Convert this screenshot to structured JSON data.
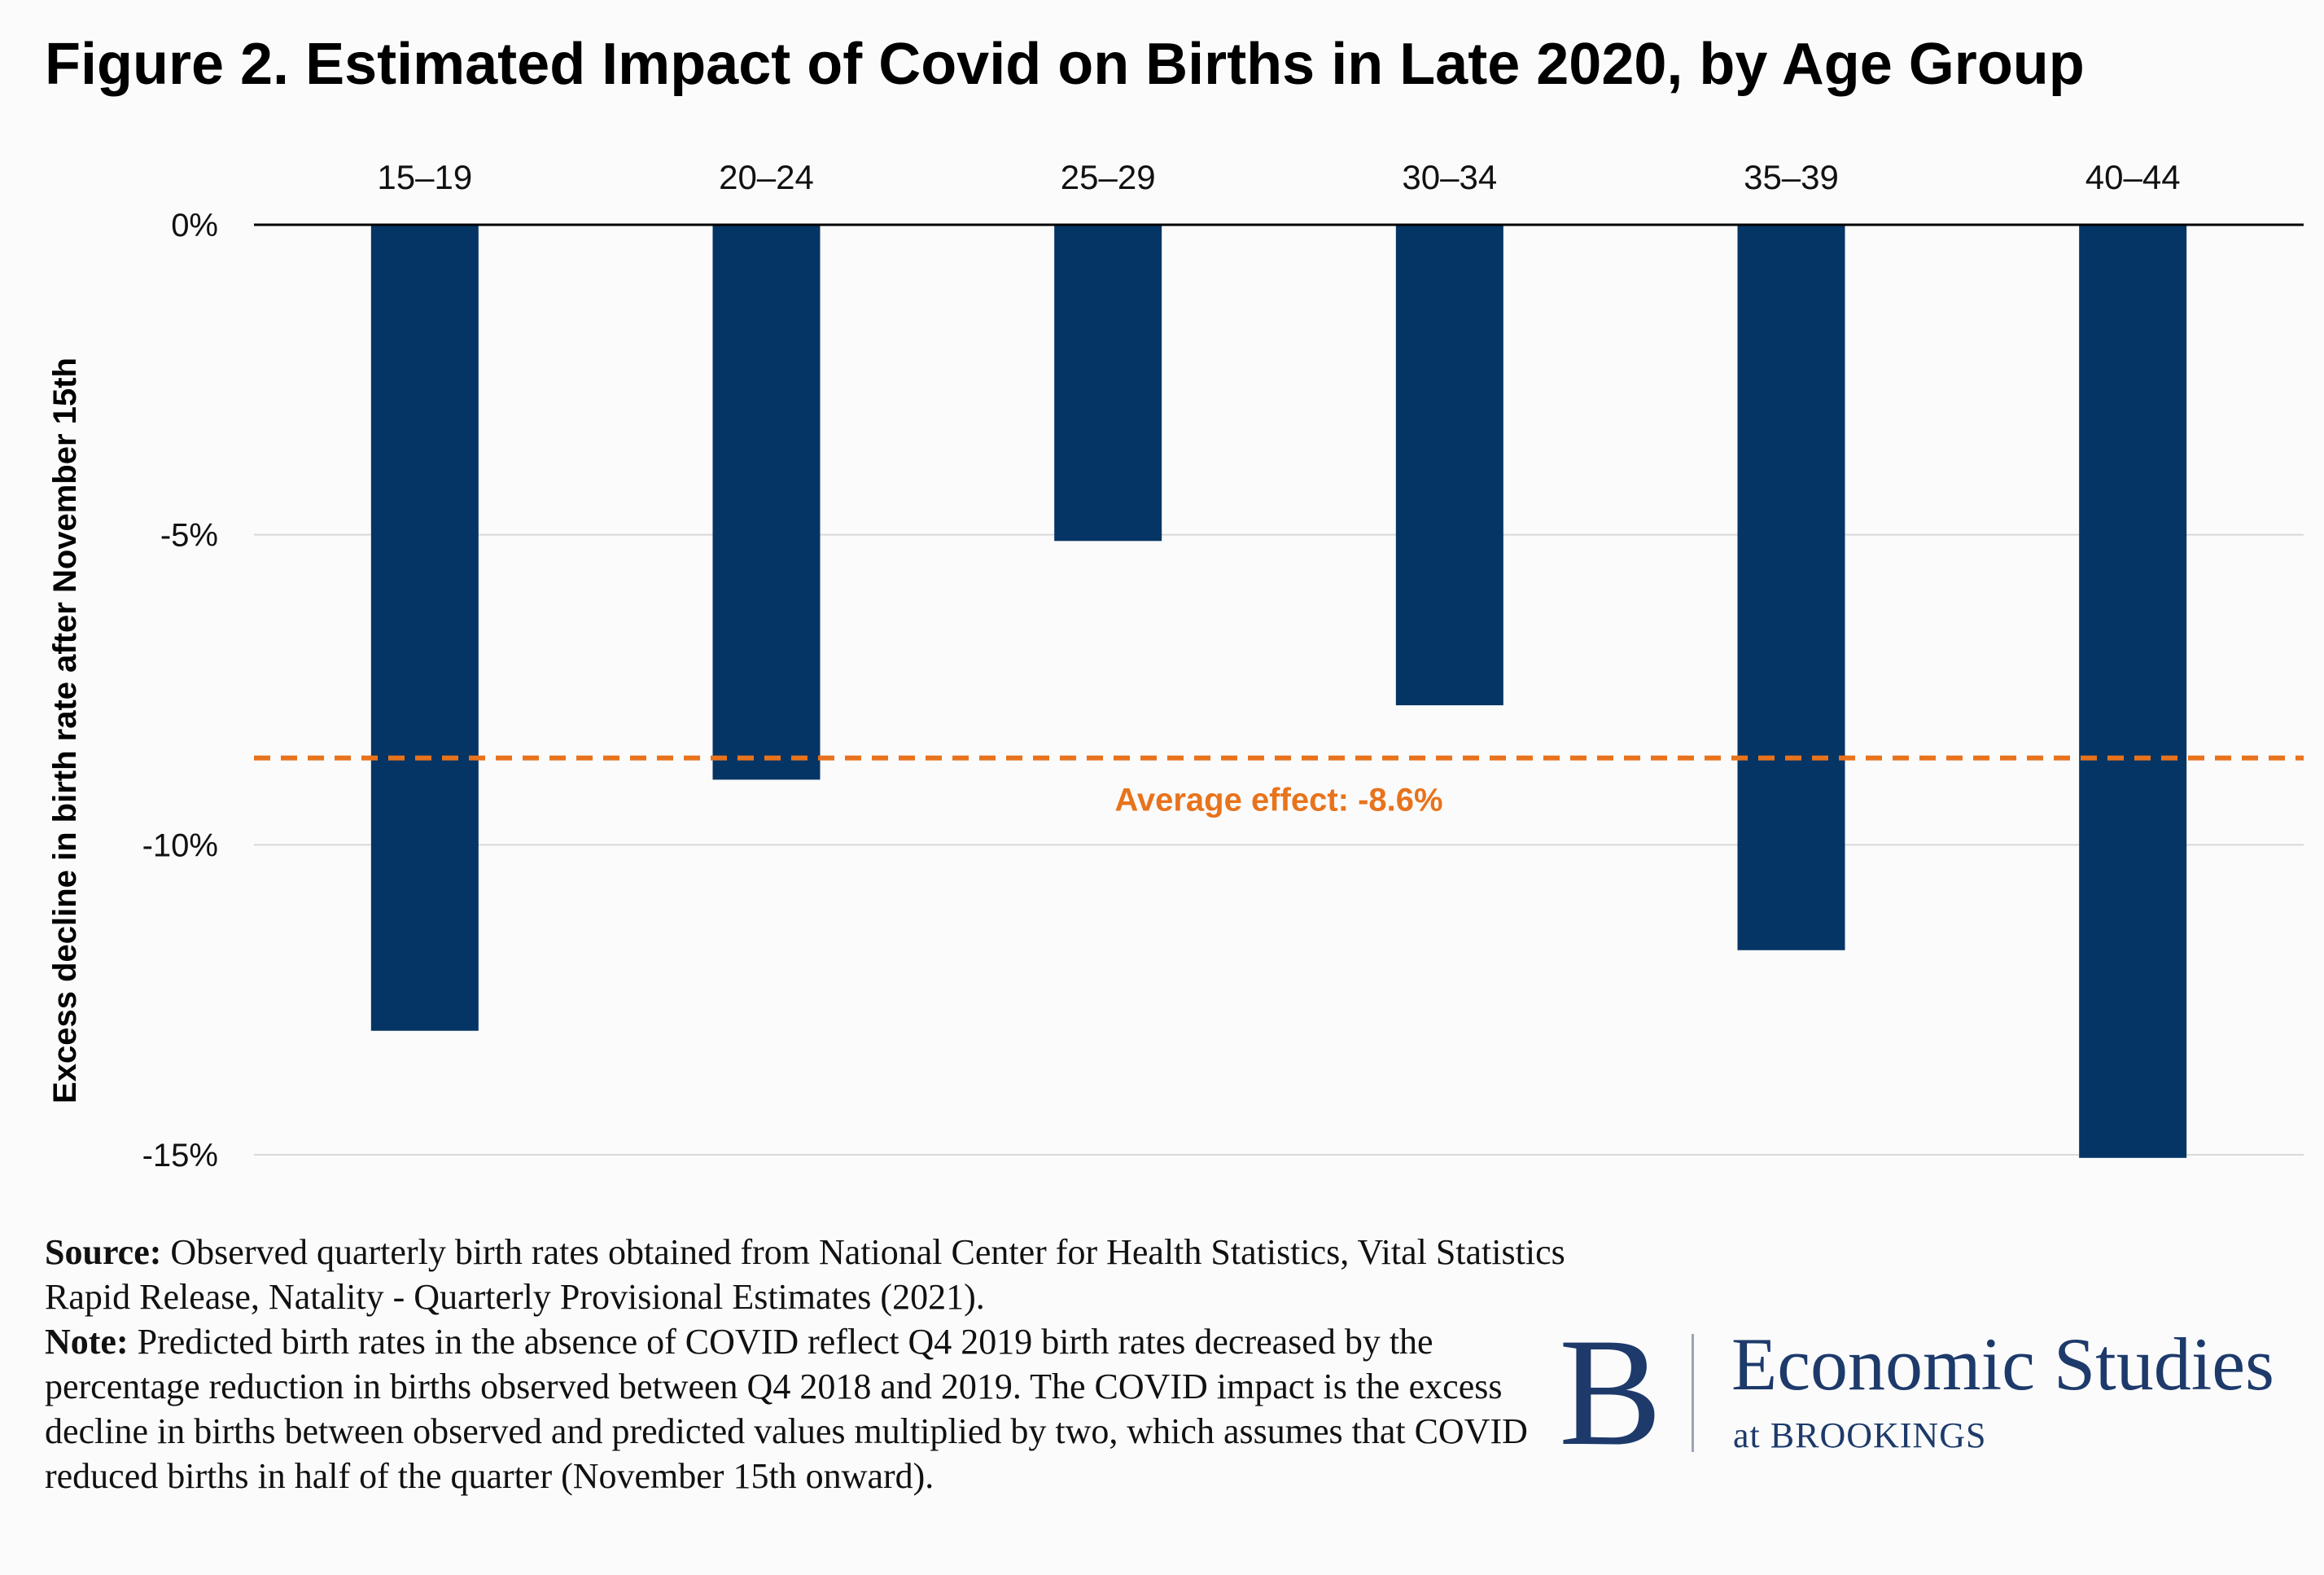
{
  "title": "Figure 2. Estimated Impact of Covid on Births in Late 2020, by Age Group",
  "chart_data": {
    "type": "bar",
    "categories": [
      "15–19",
      "20–24",
      "25–29",
      "30–34",
      "35–39",
      "40–44"
    ],
    "values": [
      -13.0,
      -8.95,
      -5.1,
      -7.75,
      -11.7,
      -15.05
    ],
    "ylabel": "Excess decline in birth rate after November 15th",
    "ylim": [
      -15,
      0
    ],
    "yticks": [
      0,
      -5,
      -10,
      -15
    ],
    "ytick_labels": [
      "0%",
      "-5%",
      "-10%",
      "-15%"
    ],
    "xaxis_position": "top",
    "grid": true,
    "bar_color": "#053565",
    "reference_line": {
      "value": -8.6,
      "label": "Average effect: -8.6%",
      "color": "#e8731c",
      "style": "dashed"
    }
  },
  "notes": {
    "source_label": "Source:",
    "source_text": "Observed quarterly birth rates obtained from National Center for Health Statistics, Vital Statistics Rapid Release, Natality - Quarterly Provisional Estimates (2021).",
    "note_label": "Note:",
    "note_text": "Predicted birth rates in the absence of COVID reflect Q4 2019 birth rates decreased by the percentage reduction in births observed between Q4 2018 and 2019. The COVID impact is the excess decline in births between observed and predicted values multiplied by two, which assumes that COVID reduced births in half of the quarter (November 15th onward)."
  },
  "logo": {
    "letter": "B",
    "name": "Economic Studies",
    "subtitle": "at BROOKINGS",
    "color": "#1d3a6b"
  }
}
